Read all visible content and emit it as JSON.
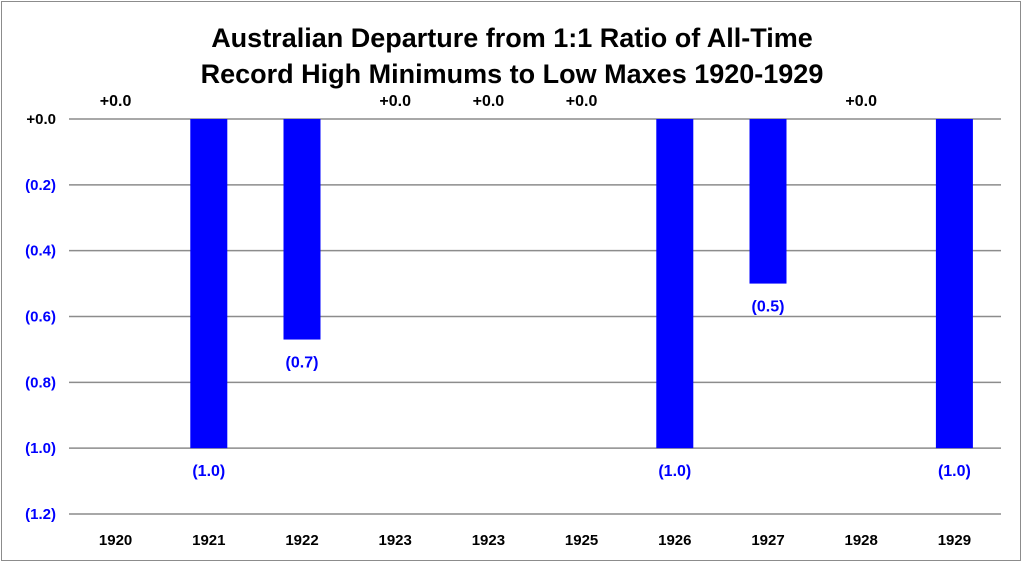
{
  "chart_data": {
    "type": "bar",
    "title": [
      "Australian Departure from 1:1 Ratio of All-Time",
      "Record High Minimums to Low Maxes 1920-1929"
    ],
    "xlabel": "",
    "ylabel": "",
    "categories": [
      "1920",
      "1921",
      "1922",
      "1923",
      "1923",
      "1925",
      "1926",
      "1927",
      "1928",
      "1929"
    ],
    "values": [
      0,
      -1.0,
      -0.67,
      0,
      0,
      0,
      -1.0,
      -0.5,
      0,
      -1.0
    ],
    "data_labels": [
      "+0.0",
      "(1.0)",
      "(0.7)",
      "+0.0",
      "+0.0",
      "+0.0",
      "(1.0)",
      "(0.5)",
      "+0.0",
      "(1.0)"
    ],
    "ylim": [
      -1.2,
      0
    ],
    "yticks": [
      0,
      -0.2,
      -0.4,
      -0.6,
      -0.8,
      -1.0,
      -1.2
    ],
    "ytick_labels": [
      "+0.0",
      "(0.2)",
      "(0.4)",
      "(0.6)",
      "(0.8)",
      "(1.0)",
      "(1.2)"
    ],
    "grid": true,
    "legend": "none",
    "colors": {
      "bar": "#0000FF",
      "negative_label": "#0000FF",
      "positive_label": "#000000",
      "gridline": "#8c8c8c"
    }
  }
}
